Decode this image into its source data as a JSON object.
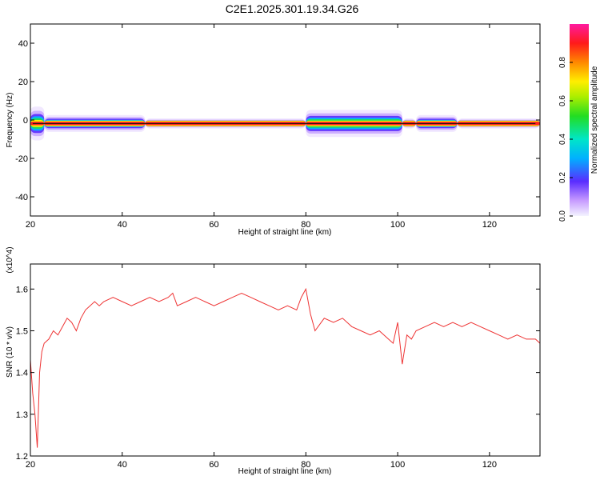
{
  "title": "C2E1.2025.301.19.34.G26",
  "colors": {
    "snr_line": "#ee3333",
    "axis": "#000000",
    "background": "#ffffff"
  },
  "chart_data": [
    {
      "type": "heatmap",
      "xlabel": "Height of straight line (km)",
      "ylabel": "Frequency (Hz)",
      "xlim": [
        20,
        131
      ],
      "ylim": [
        -50,
        50
      ],
      "xticks": [
        20,
        40,
        60,
        80,
        100,
        120
      ],
      "yticks": [
        -40,
        -20,
        0,
        20,
        40
      ],
      "ridge_frequency_hz": -1.8,
      "spread_segments": [
        {
          "x0": 20,
          "x1": 23,
          "half_width_hz": 5
        },
        {
          "x0": 23,
          "x1": 45,
          "half_width_hz": 2.5
        },
        {
          "x0": 45,
          "x1": 80,
          "half_width_hz": 1.5
        },
        {
          "x0": 80,
          "x1": 101,
          "half_width_hz": 4
        },
        {
          "x0": 101,
          "x1": 104,
          "half_width_hz": 1.5
        },
        {
          "x0": 104,
          "x1": 113,
          "half_width_hz": 2.5
        },
        {
          "x0": 113,
          "x1": 131,
          "half_width_hz": 1.5
        }
      ],
      "colorbar": {
        "label": "Normalized spectral amplitude",
        "range": [
          0,
          1
        ],
        "ticks": [
          "0.0",
          "0.2",
          "0.4",
          "0.6",
          "0.8"
        ]
      }
    },
    {
      "type": "line",
      "xlabel": "Height of straight line (km)",
      "ylabel": "SNR (10 * v/v)",
      "y_multiplier": "(x10^4)",
      "xlim": [
        20,
        131
      ],
      "ylim": [
        1.2,
        1.66
      ],
      "xticks": [
        20,
        40,
        60,
        80,
        100,
        120
      ],
      "yticks": [
        "1.2",
        "1.3",
        "1.4",
        "1.5",
        "1.6"
      ],
      "series": [
        {
          "x": [
            20,
            20.5,
            21,
            21.5,
            22,
            22.5,
            23,
            24,
            25,
            26,
            27,
            28,
            29,
            30,
            31,
            32,
            33,
            34,
            35,
            36,
            38,
            40,
            42,
            44,
            46,
            48,
            50,
            51,
            52,
            54,
            56,
            58,
            60,
            62,
            64,
            66,
            68,
            70,
            72,
            74,
            76,
            78,
            79,
            80,
            81,
            82,
            84,
            86,
            88,
            90,
            92,
            94,
            96,
            98,
            99,
            100,
            101,
            102,
            103,
            104,
            106,
            108,
            110,
            112,
            114,
            116,
            118,
            120,
            122,
            124,
            126,
            128,
            130,
            131
          ],
          "y": [
            1.43,
            1.35,
            1.3,
            1.22,
            1.4,
            1.45,
            1.47,
            1.48,
            1.5,
            1.49,
            1.51,
            1.53,
            1.52,
            1.5,
            1.53,
            1.55,
            1.56,
            1.57,
            1.56,
            1.57,
            1.58,
            1.57,
            1.56,
            1.57,
            1.58,
            1.57,
            1.58,
            1.59,
            1.56,
            1.57,
            1.58,
            1.57,
            1.56,
            1.57,
            1.58,
            1.59,
            1.58,
            1.57,
            1.56,
            1.55,
            1.56,
            1.55,
            1.58,
            1.6,
            1.54,
            1.5,
            1.53,
            1.52,
            1.53,
            1.51,
            1.5,
            1.49,
            1.5,
            1.48,
            1.47,
            1.52,
            1.42,
            1.49,
            1.48,
            1.5,
            1.51,
            1.52,
            1.51,
            1.52,
            1.51,
            1.52,
            1.51,
            1.5,
            1.49,
            1.48,
            1.49,
            1.48,
            1.48,
            1.47
          ]
        }
      ]
    }
  ]
}
